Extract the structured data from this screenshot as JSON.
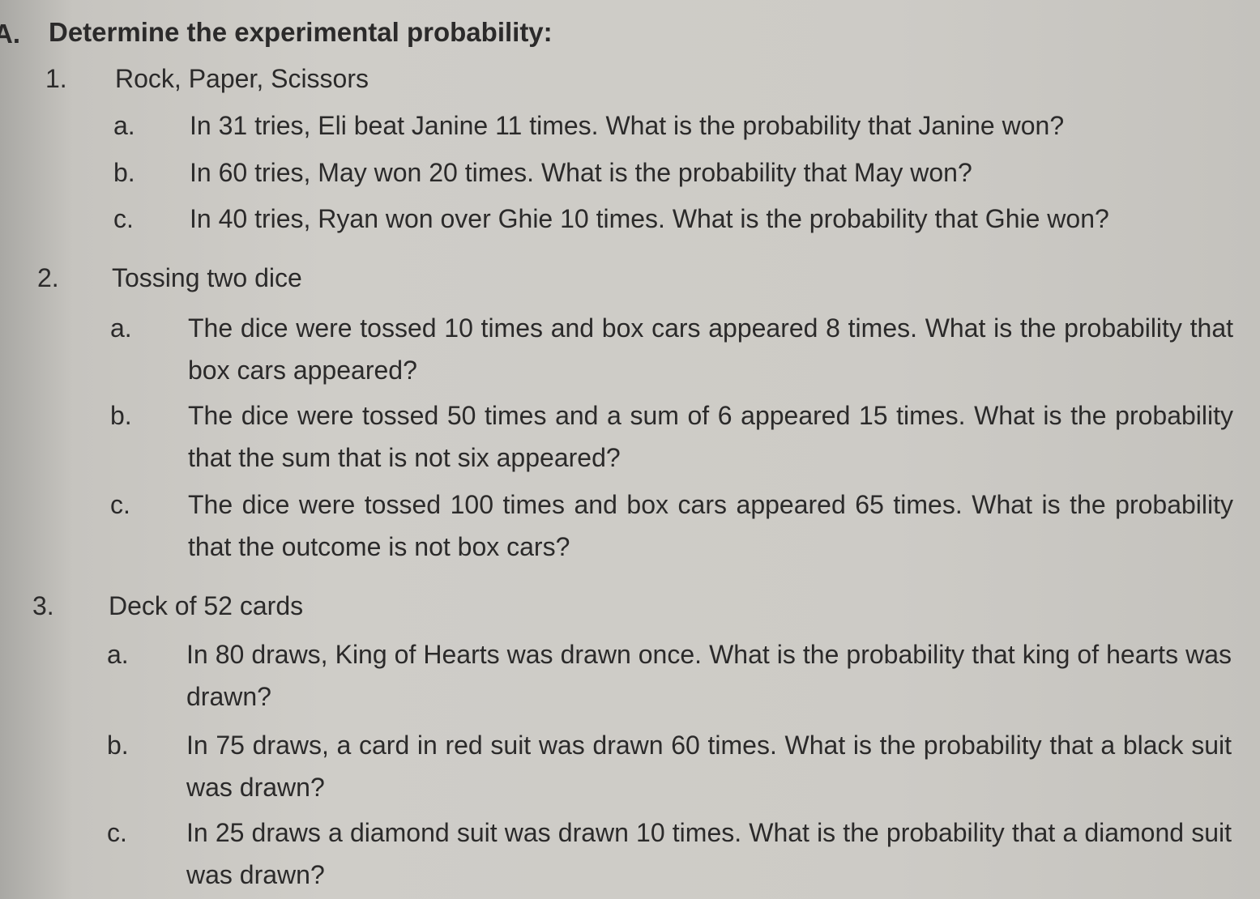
{
  "header": {
    "marker": "A.",
    "title": "Determine the experimental probability:"
  },
  "sections": [
    {
      "number": "1.",
      "title": "Rock, Paper, Scissors",
      "items": [
        {
          "letter": "a.",
          "text": "In 31 tries, Eli beat Janine 11 times. What is the probability that Janine won?"
        },
        {
          "letter": "b.",
          "text": "In 60 tries, May won 20 times. What is the probability that May won?"
        },
        {
          "letter": "c.",
          "text": "In 40 tries, Ryan won over Ghie 10 times. What is the probability that Ghie won?"
        }
      ]
    },
    {
      "number": "2.",
      "title": "Tossing two dice",
      "items": [
        {
          "letter": "a.",
          "text": "The dice were tossed 10 times and box cars appeared 8 times. What is the probability that box cars appeared?"
        },
        {
          "letter": "b.",
          "text": "The dice were tossed 50 times and a sum of 6 appeared 15 times. What is the probability that the sum that is not six appeared?"
        },
        {
          "letter": "c.",
          "text": "The dice were tossed 100 times and box cars appeared 65 times. What is the probability that the outcome is not box cars?"
        }
      ]
    },
    {
      "number": "3.",
      "title": "Deck of 52 cards",
      "items": [
        {
          "letter": "a.",
          "text": "In 80 draws, King of Hearts was drawn once. What is the probability that king of hearts was drawn?"
        },
        {
          "letter": "b.",
          "text": "In 75 draws, a card in red suit was drawn 60 times. What is the probability that a black suit was drawn?"
        },
        {
          "letter": "c.",
          "text": "In 25 draws a diamond suit was drawn 10 times. What is the probability that a diamond suit was drawn?"
        }
      ]
    }
  ]
}
